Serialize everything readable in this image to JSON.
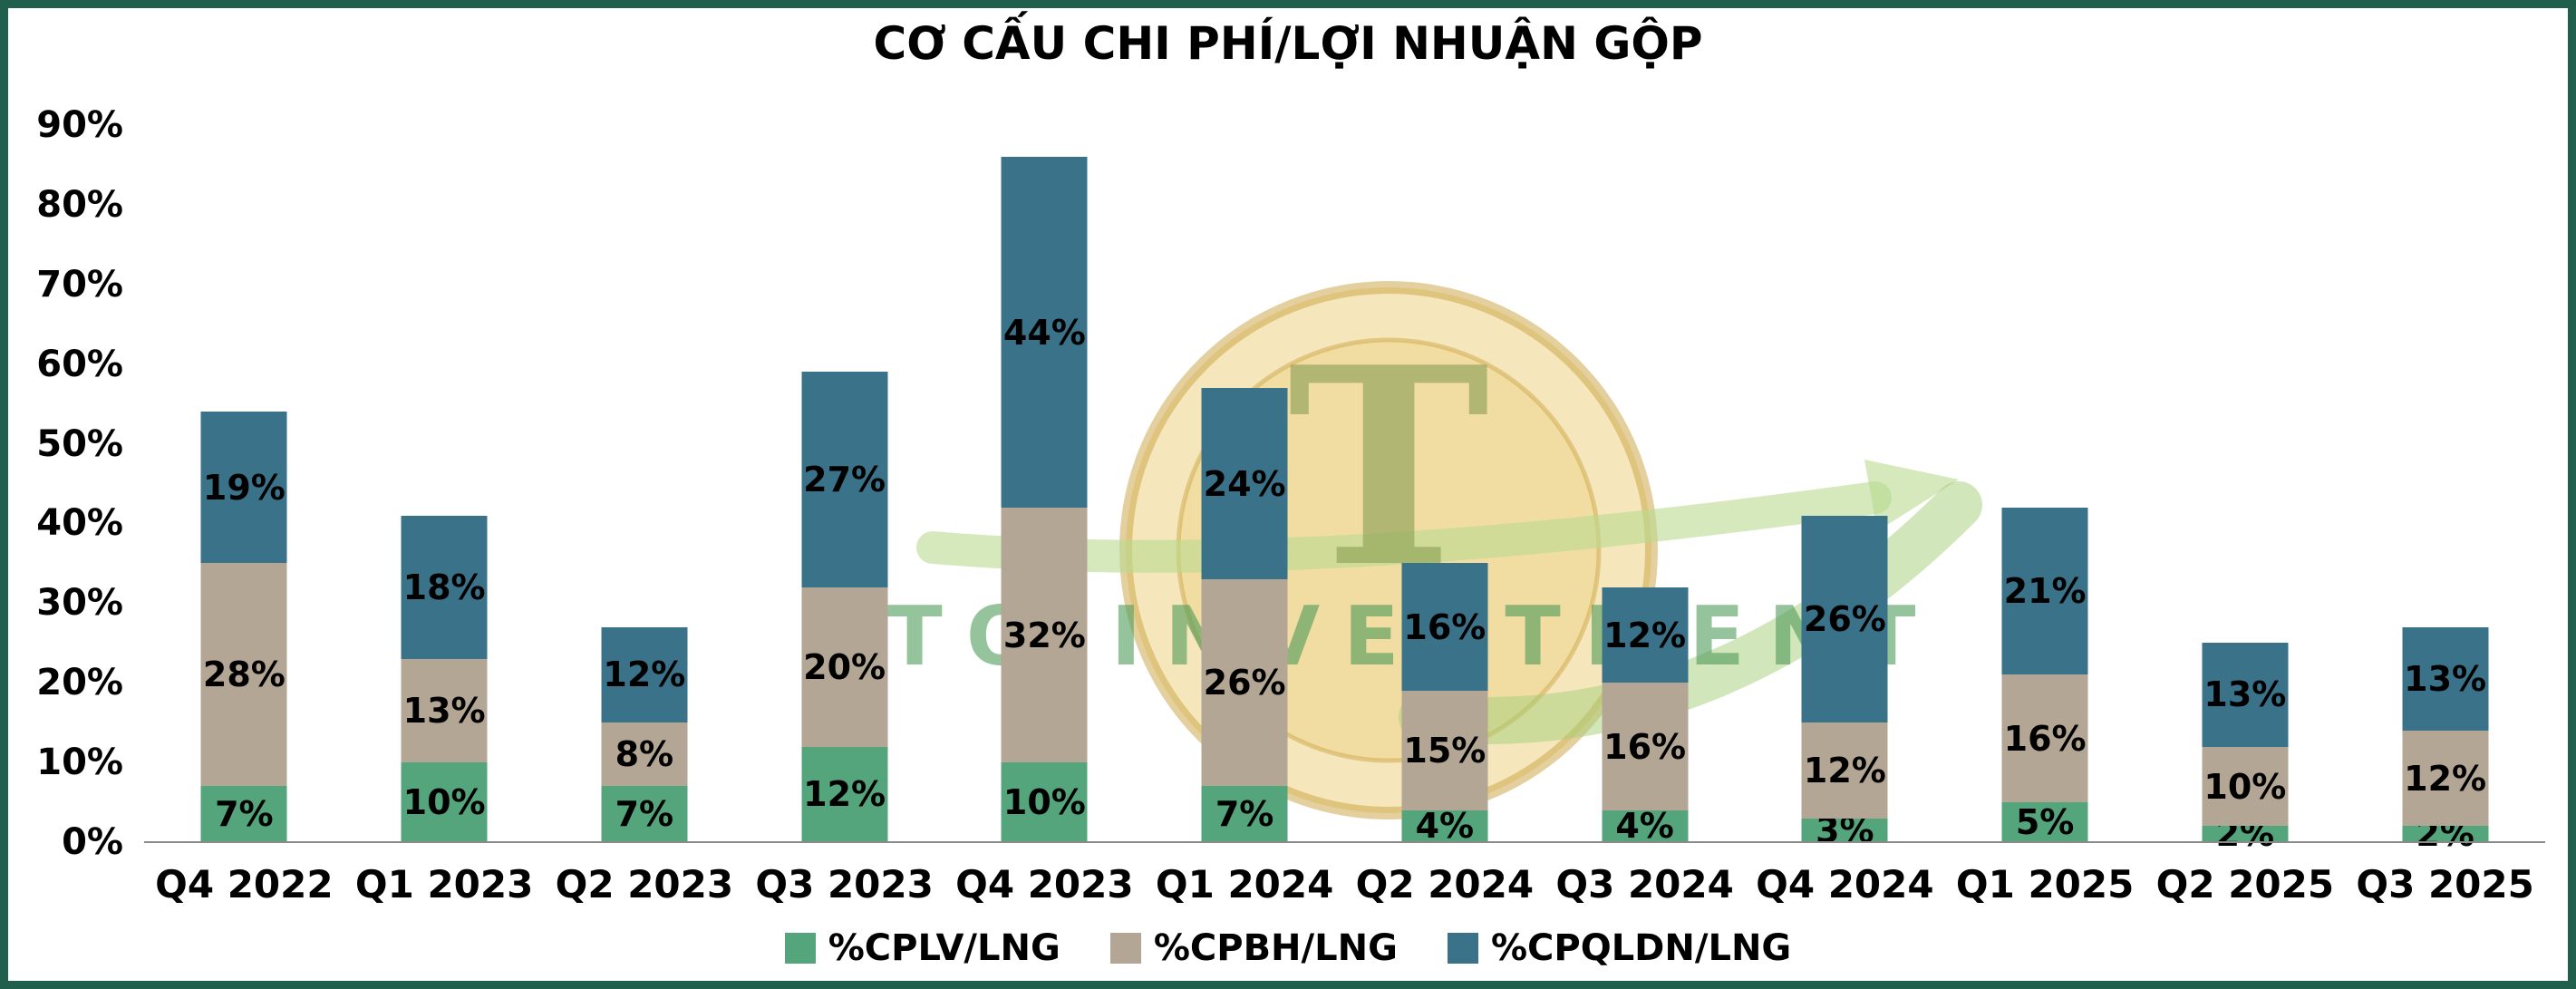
{
  "chart_data": {
    "type": "bar",
    "stacked": true,
    "title": "CƠ CẤU CHI PHÍ/LỢI NHUẬN GỘP",
    "categories": [
      "Q4 2022",
      "Q1 2023",
      "Q2 2023",
      "Q3 2023",
      "Q4 2023",
      "Q1 2024",
      "Q2 2024",
      "Q3 2024",
      "Q4 2024",
      "Q1 2025",
      "Q2 2025",
      "Q3 2025"
    ],
    "series": [
      {
        "name": "%CPLV/LNG",
        "color": "#54A47C",
        "values": [
          7,
          10,
          7,
          12,
          10,
          7,
          4,
          4,
          3,
          5,
          2,
          2
        ]
      },
      {
        "name": "%CPBH/LNG",
        "color": "#B4A694",
        "values": [
          28,
          13,
          8,
          20,
          32,
          26,
          15,
          16,
          12,
          16,
          10,
          12
        ]
      },
      {
        "name": "%CPQLDN/LNG",
        "color": "#3A7389",
        "values": [
          19,
          18,
          12,
          27,
          44,
          24,
          16,
          12,
          26,
          21,
          13,
          13
        ]
      }
    ],
    "ylim": [
      0,
      90
    ],
    "y_ticks": [
      "0%",
      "10%",
      "20%",
      "30%",
      "40%",
      "50%",
      "60%",
      "70%",
      "80%",
      "90%"
    ],
    "grid": false,
    "legend_position": "bottom",
    "data_label_format": "{v}%"
  },
  "watermark": {
    "letter": "T",
    "text": "TQ INVESTMENT"
  },
  "colors": {
    "frame_border": "#1F5F4B",
    "background": "#FFFFFF",
    "text": "#000000"
  }
}
